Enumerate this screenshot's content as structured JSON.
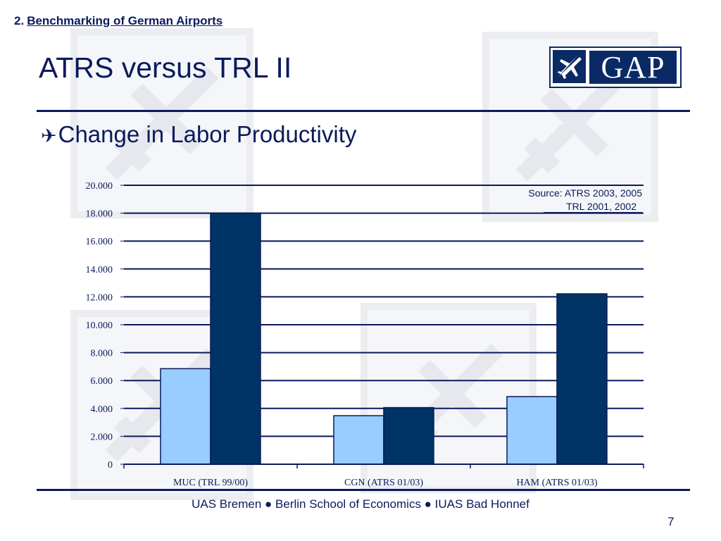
{
  "header": {
    "section_number": "2.",
    "section_title": "Benchmarking of German Airports",
    "title": "ATRS versus TRL II",
    "subtitle_bullet": "✈",
    "subtitle": "Change in Labor Productivity"
  },
  "logo": {
    "text": "GAP"
  },
  "source": {
    "line1": "Source: ATRS 2003, 2005",
    "line2": "TRL  2001, 2002"
  },
  "colors": {
    "primary": "#0a1a5c",
    "series_light": "#99ccff",
    "series_dark": "#003366"
  },
  "chart_data": {
    "type": "bar",
    "categories": [
      "MUC (TRL 99/00)",
      "CGN (ATRS 01/03)",
      "HAM (ATRS 01/03)"
    ],
    "series": [
      {
        "values": [
          6850,
          3480,
          4850
        ]
      },
      {
        "values": [
          18000,
          4060,
          12220
        ]
      }
    ],
    "ylim": [
      0,
      20000
    ],
    "yticks": [
      0,
      2000,
      4000,
      6000,
      8000,
      10000,
      12000,
      14000,
      16000,
      18000,
      20000
    ],
    "ytick_labels": [
      "0",
      "2.000",
      "4.000",
      "6.000",
      "8.000",
      "10.000",
      "12.000",
      "14.000",
      "16.000",
      "18.000",
      "20.000"
    ],
    "grid": true,
    "title": "",
    "xlabel": "",
    "ylabel": ""
  },
  "footer": {
    "text": "UAS Bremen ● Berlin School of Economics ● IUAS Bad Honnef",
    "page": "7"
  }
}
